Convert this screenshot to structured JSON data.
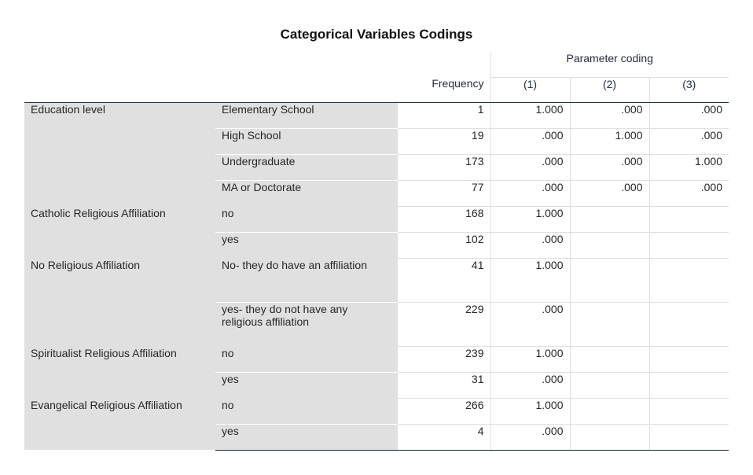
{
  "title": "Categorical Variables Codings",
  "header": {
    "parameter_coding": "Parameter coding",
    "frequency": "Frequency",
    "col1": "(1)",
    "col2": "(2)",
    "col3": "(3)"
  },
  "groups": [
    {
      "label": "Education level",
      "rows": [
        {
          "category": "Elementary School",
          "frequency": "1",
          "p1": "1.000",
          "p2": ".000",
          "p3": ".000"
        },
        {
          "category": "High School",
          "frequency": "19",
          "p1": ".000",
          "p2": "1.000",
          "p3": ".000"
        },
        {
          "category": "Undergraduate",
          "frequency": "173",
          "p1": ".000",
          "p2": ".000",
          "p3": "1.000"
        },
        {
          "category": "MA or Doctorate",
          "frequency": "77",
          "p1": ".000",
          "p2": ".000",
          "p3": ".000"
        }
      ]
    },
    {
      "label": "Catholic Religious Affiliation",
      "rows": [
        {
          "category": "no",
          "frequency": "168",
          "p1": "1.000"
        },
        {
          "category": "yes",
          "frequency": "102",
          "p1": ".000"
        }
      ]
    },
    {
      "label": "No Religious Affiliation",
      "rows": [
        {
          "category": "No- they do have an affiliation",
          "frequency": "41",
          "p1": "1.000"
        },
        {
          "category": "yes- they do not have any religious affiliation",
          "frequency": "229",
          "p1": ".000"
        }
      ]
    },
    {
      "label": "Spiritualist Religious Affiliation",
      "rows": [
        {
          "category": "no",
          "frequency": "239",
          "p1": "1.000"
        },
        {
          "category": "yes",
          "frequency": "31",
          "p1": ".000"
        }
      ]
    },
    {
      "label": "Evangelical Religious Affiliation",
      "rows": [
        {
          "category": "no",
          "frequency": "266",
          "p1": "1.000"
        },
        {
          "category": "yes",
          "frequency": "4",
          "p1": ".000"
        }
      ]
    }
  ]
}
